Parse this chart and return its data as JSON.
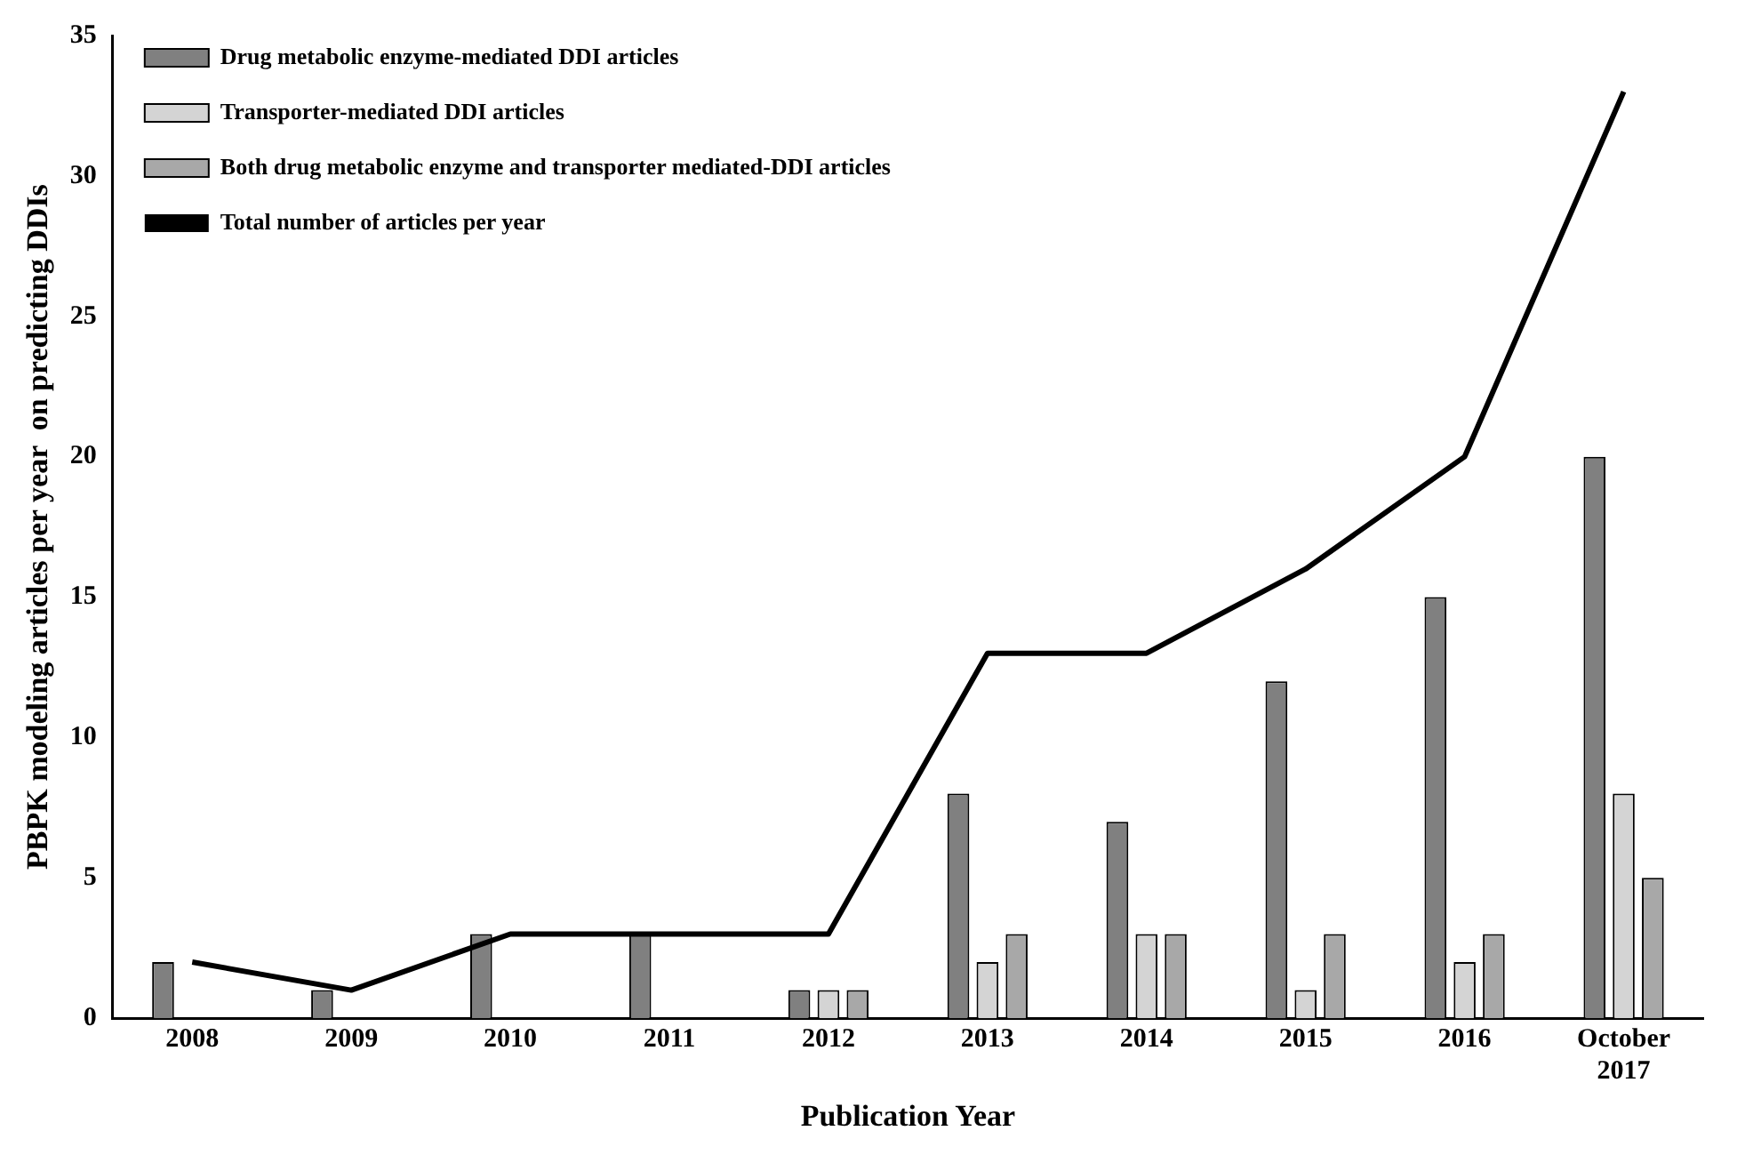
{
  "chart_data": {
    "type": "bar",
    "xlabel": "Publication Year",
    "ylabel": "PBPK modeling articles per year  on predicting DDIs",
    "categories": [
      "2008",
      "2009",
      "2010",
      "2011",
      "2012",
      "2013",
      "2014",
      "2015",
      "2016",
      "October 2017"
    ],
    "series": [
      {
        "name": "Drug metabolic enzyme-mediated DDI articles",
        "color": "#808080",
        "values": [
          2,
          1,
          3,
          3,
          1,
          8,
          7,
          12,
          15,
          20
        ]
      },
      {
        "name": "Transporter-mediated DDI articles",
        "color": "#d4d4d4",
        "values": [
          0,
          0,
          0,
          0,
          1,
          2,
          3,
          1,
          2,
          8
        ]
      },
      {
        "name": "Both drug metabolic enzyme and transporter mediated-DDI articles",
        "color": "#a8a8a8",
        "values": [
          0,
          0,
          0,
          0,
          1,
          3,
          3,
          3,
          3,
          5
        ]
      },
      {
        "name": "Total number of articles per year",
        "type": "line",
        "color": "#000000",
        "values": [
          2,
          1,
          3,
          3,
          3,
          13,
          13,
          16,
          20,
          33
        ]
      }
    ],
    "ylim": [
      0,
      35
    ],
    "yticks": [
      0,
      5,
      10,
      15,
      20,
      25,
      30,
      35
    ],
    "grid": false,
    "legend": "top left",
    "marker": "none",
    "line_style": "solid"
  }
}
